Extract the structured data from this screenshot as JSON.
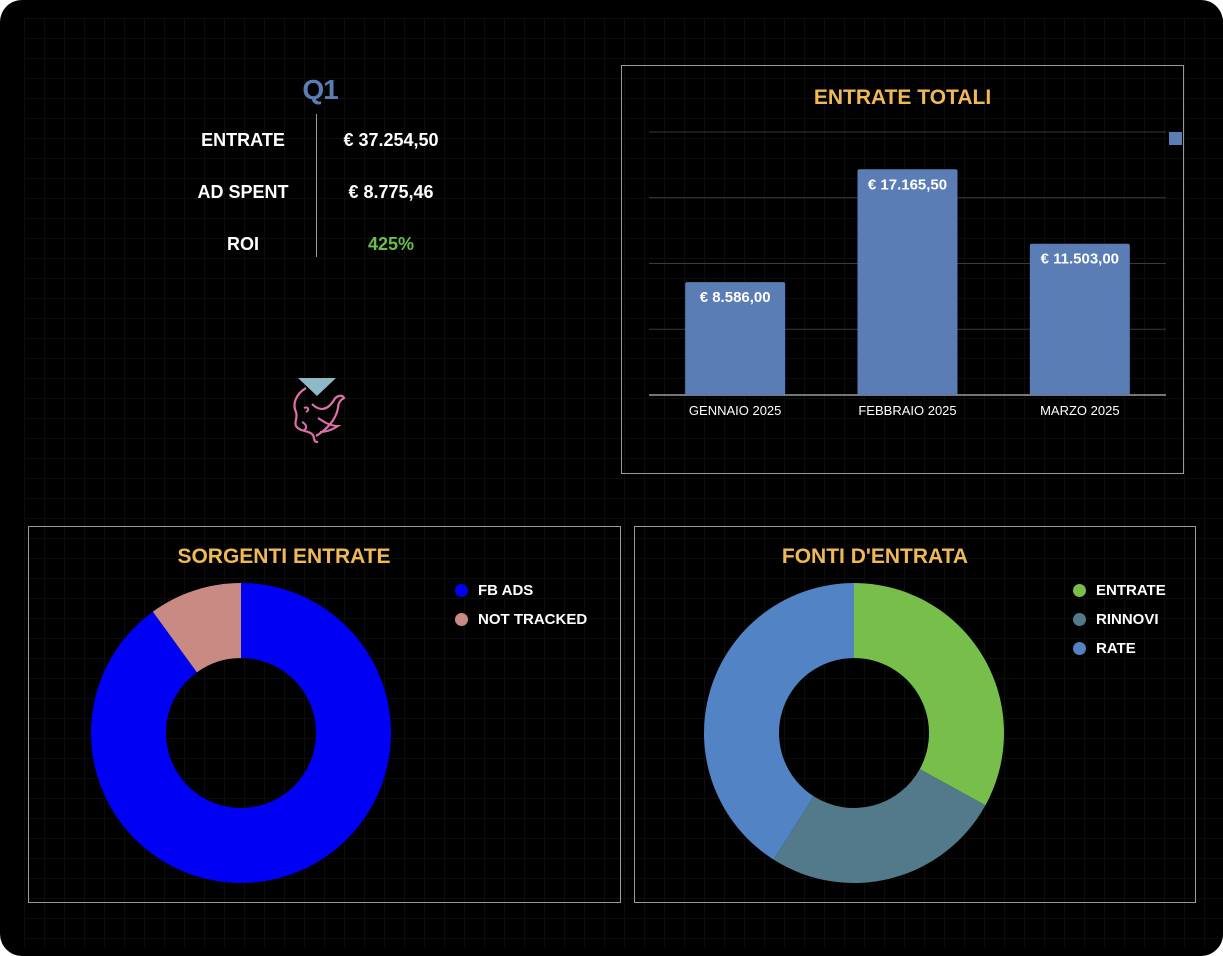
{
  "kpi": {
    "title": "Q1",
    "rows": [
      {
        "label": "ENTRATE",
        "value": "€ 37.254,50",
        "value_color": "#ffffff"
      },
      {
        "label": "AD SPENT",
        "value": "€ 8.775,46",
        "value_color": "#ffffff"
      },
      {
        "label": "ROI",
        "value": "425%",
        "value_color": "#6abf4b"
      }
    ]
  },
  "logo": {
    "name": "dove-face-logo"
  },
  "chart_data": [
    {
      "type": "bar",
      "title": "ENTRATE TOTALI",
      "categories": [
        "GENNAIO 2025",
        "FEBBRAIO 2025",
        "MARZO 2025"
      ],
      "values": [
        8586.0,
        17165.5,
        11503.0
      ],
      "data_labels": [
        "€ 8.586,00",
        "€ 17.165,50",
        "€ 11.503,00"
      ],
      "ylim": [
        0,
        20000
      ],
      "grid": true,
      "bar_color": "#5b7db5",
      "legend": "top-right"
    },
    {
      "type": "pie",
      "subtype": "donut",
      "title": "SORGENTI ENTRATE",
      "categories": [
        "FB ADS",
        "NOT TRACKED"
      ],
      "values": [
        90,
        10
      ],
      "colors": [
        "#0000f5",
        "#c98a83"
      ],
      "legend": "top-right"
    },
    {
      "type": "pie",
      "subtype": "donut",
      "title": "FONTI D'ENTRATA",
      "categories": [
        "ENTRATE",
        "RINNOVI",
        "RATE"
      ],
      "values": [
        33,
        26,
        41
      ],
      "colors": [
        "#77bf4a",
        "#527a8a",
        "#5283c4"
      ],
      "legend": "top-right"
    }
  ]
}
